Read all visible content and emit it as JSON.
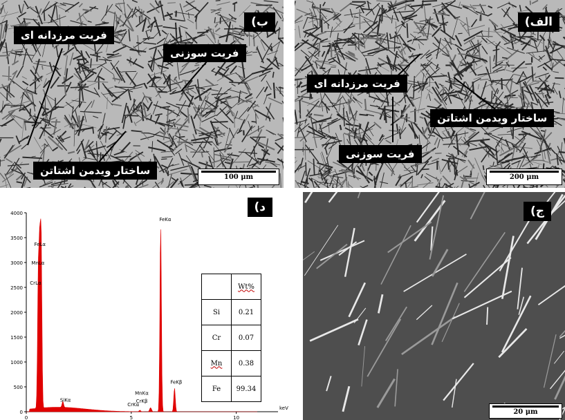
{
  "panels": {
    "alef": {
      "label": "الف)",
      "annotations": {
        "boundary_ferrite": "فریت مرزدانه ای",
        "widmanstatten": "ساختار ویدمن اشتاتن",
        "acicular_ferrite": "فریت سوزنی"
      },
      "scale": "200 μm"
    },
    "be": {
      "label": "ب)",
      "annotations": {
        "boundary_ferrite": "فریت مرزدانه ای",
        "acicular_ferrite": "فریت سوزنی",
        "widmanstatten": "ساختار ویدمن اشتاتن"
      },
      "scale": "100 μm"
    },
    "jim": {
      "label": "ج)",
      "scale": "20 μm"
    },
    "dal": {
      "label": "د)",
      "table": {
        "header": "Wt%",
        "rows": [
          {
            "element": "Si",
            "value": "0.21"
          },
          {
            "element": "Cr",
            "value": "0.07"
          },
          {
            "element": "Mn",
            "value": "0.38"
          },
          {
            "element": "Fe",
            "value": "99.34"
          }
        ]
      }
    }
  },
  "chart_data": {
    "type": "line",
    "title": "",
    "xlabel": "keV",
    "ylabel": "",
    "xlim": [
      0,
      11
    ],
    "ylim": [
      0,
      4000
    ],
    "x_ticks": [
      "0",
      "5",
      "10"
    ],
    "y_ticks": [
      "0",
      "500",
      "1000",
      "1500",
      "2000",
      "2500",
      "3000",
      "3500",
      "4000"
    ],
    "color": "#e00000",
    "peaks": [
      {
        "label": "FeLα",
        "x": 0.71,
        "y": 3250
      },
      {
        "label": "MnLα",
        "x": 0.64,
        "y": 2900
      },
      {
        "label": "CrLα",
        "x": 0.57,
        "y": 2500
      },
      {
        "label": "SiKα",
        "x": 1.74,
        "y": 120
      },
      {
        "label": "CrKα",
        "x": 5.41,
        "y": 30
      },
      {
        "label": "MnKα",
        "x": 5.9,
        "y": 60
      },
      {
        "label": "CrKβ",
        "x": 5.95,
        "y": 40
      },
      {
        "label": "FeKα",
        "x": 6.4,
        "y": 3750
      },
      {
        "label": "FeKβ",
        "x": 7.06,
        "y": 480
      }
    ]
  }
}
